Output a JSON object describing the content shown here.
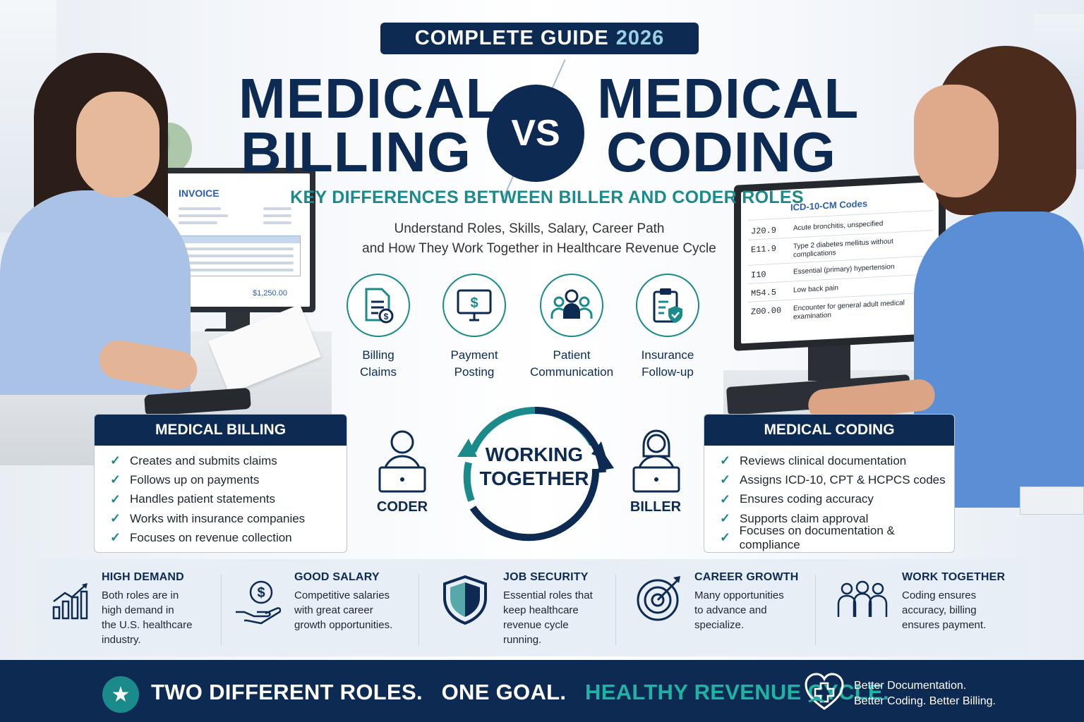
{
  "header": {
    "guide_label": "COMPLETE GUIDE",
    "guide_year": "2026",
    "left_title_1": "MEDICAL",
    "left_title_2": "BILLING",
    "vs": "VS",
    "right_title_1": "MEDICAL",
    "right_title_2": "CODING",
    "subtitle": "KEY DIFFERENCES BETWEEN BILLER AND CODER ROLES",
    "description_1": "Understand Roles, Skills, Salary, Career Path",
    "description_2": "and How They Work Together in Healthcare Revenue Cycle"
  },
  "invoice_screen": {
    "title": "INVOICE",
    "amount": "$1,250.00"
  },
  "icd_screen": {
    "title": "ICD-10-CM Codes",
    "rows": [
      {
        "code": "J20.9",
        "desc": "Acute bronchitis, unspecified"
      },
      {
        "code": "E11.9",
        "desc": "Type 2 diabetes mellitus without complications"
      },
      {
        "code": "I10",
        "desc": "Essential (primary) hypertension"
      },
      {
        "code": "M54.5",
        "desc": "Low back pain"
      },
      {
        "code": "Z00.00",
        "desc": "Encounter for general adult medical examination"
      }
    ]
  },
  "features": [
    {
      "line1": "Billing",
      "line2": "Claims",
      "icon": "document-dollar-icon"
    },
    {
      "line1": "Payment",
      "line2": "Posting",
      "icon": "monitor-dollar-icon"
    },
    {
      "line1": "Patient",
      "line2": "Communication",
      "icon": "people-group-icon"
    },
    {
      "line1": "Insurance",
      "line2": "Follow-up",
      "icon": "clipboard-shield-icon"
    }
  ],
  "billing_card": {
    "title": "MEDICAL BILLING",
    "items": [
      "Creates and submits claims",
      "Follows up on payments",
      "Handles patient statements",
      "Works with insurance companies",
      "Focuses on revenue collection"
    ]
  },
  "coding_card": {
    "title": "MEDICAL CODING",
    "items": [
      "Reviews clinical documentation",
      "Assigns ICD-10, CPT & HCPCS codes",
      "Ensures coding accuracy",
      "Supports claim approval",
      "Focuses on documentation & compliance"
    ]
  },
  "working_together": {
    "line1": "WORKING",
    "line2": "TOGETHER",
    "coder_label": "CODER",
    "biller_label": "BILLER"
  },
  "benefits": [
    {
      "title": "HIGH DEMAND",
      "desc": [
        "Both roles are in",
        "high demand in",
        "the U.S. healthcare",
        "industry."
      ],
      "icon": "bar-chart-icon"
    },
    {
      "title": "GOOD SALARY",
      "desc": [
        "Competitive salaries",
        "with great career",
        "growth opportunities."
      ],
      "icon": "hand-dollar-icon"
    },
    {
      "title": "JOB SECURITY",
      "desc": [
        "Essential roles that",
        "keep healthcare",
        "revenue cycle",
        "running."
      ],
      "icon": "shield-icon"
    },
    {
      "title": "CAREER GROWTH",
      "desc": [
        "Many opportunities",
        "to advance and",
        "specialize."
      ],
      "icon": "target-icon"
    },
    {
      "title": "WORK TOGETHER",
      "desc": [
        "Coding ensures",
        "accuracy, billing",
        "ensures payment."
      ],
      "icon": "team-icon"
    }
  ],
  "footer": {
    "part1": "TWO DIFFERENT ROLES.",
    "part2": "ONE GOAL.",
    "part3": "HEALTHY REVENUE CYCLE.",
    "right_line1": "Better Documentation.",
    "right_line2": "Better Coding. Better Billing."
  },
  "colors": {
    "navy": "#0c2a52",
    "teal": "#1a8a8a",
    "accent_green": "#1fb3a5"
  }
}
